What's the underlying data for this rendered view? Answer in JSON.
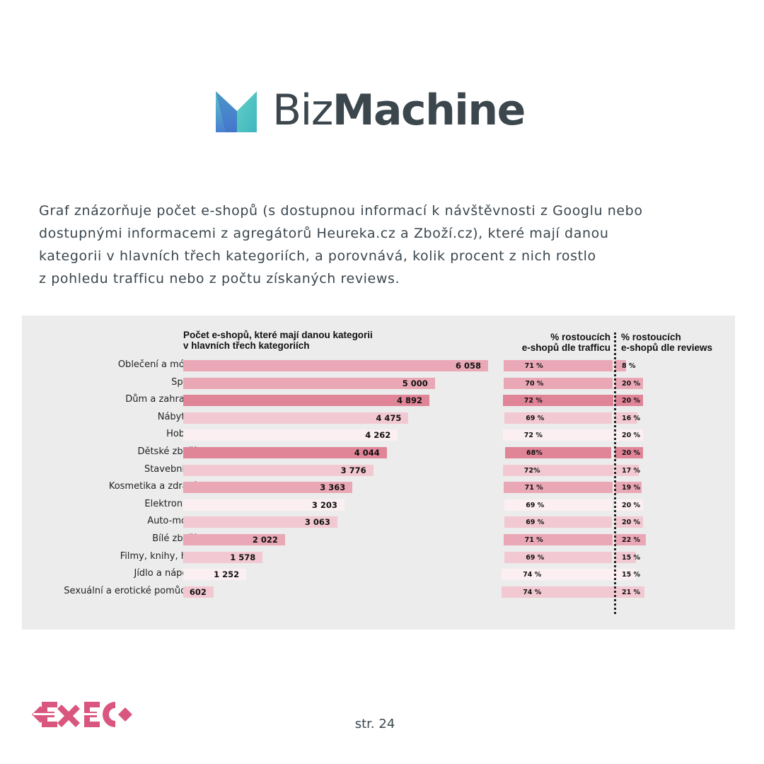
{
  "logo": {
    "text_light": "Biz",
    "text_bold": "Machine"
  },
  "intro_lines": [
    "Graf znázorňuje počet e-shopů (s dostupnou informací k návštěvnosti z Googlu nebo",
    "dostupnými informacemi z agregátorů Heureka.cz a Zboží.cz), které mají danou",
    "kategorii v hlavních třech kategoriích, a porovnává, kolik procent z nich rostlo",
    "z pohledu trafficu nebo z počtu získaných reviews."
  ],
  "chart_data": {
    "type": "bar",
    "orientation": "horizontal",
    "title_lines": [
      "Počet e-shopů, které mají danou kategorii",
      "v hlavních třech kategoriích"
    ],
    "traffic_header_lines": [
      "% rostoucích",
      "e-shopů dle trafficu"
    ],
    "reviews_header_lines": [
      "% rostoucích",
      "e-shopů dle reviews"
    ],
    "xlim": [
      0,
      6058
    ],
    "categories": [
      "Oblečení a móda",
      "Sport",
      "Dům a zahrada",
      "Nábytek",
      "Hobby",
      "Dětské zboží",
      "Stavebniny",
      "Kosmetika a zdraví",
      "Elektronika",
      "Auto-moto",
      "Bílé zboží",
      "Filmy, knihy, hry",
      "Jídlo a nápoje",
      "Sexuální a erotické pomůcky"
    ],
    "counts": [
      6058,
      5000,
      4892,
      4475,
      4262,
      4044,
      3776,
      3363,
      3203,
      3063,
      2022,
      1578,
      1252,
      602
    ],
    "count_labels": [
      "6 058",
      "5 000",
      "4 892",
      "4 475",
      "4 262",
      "4 044",
      "3 776",
      "3 363",
      "3 203",
      "3 063",
      "2 022",
      "1 578",
      "1 252",
      "602"
    ],
    "traffic_pct": [
      71,
      70,
      72,
      69,
      72,
      68,
      72,
      71,
      69,
      69,
      71,
      69,
      74,
      74
    ],
    "traffic_labels": [
      "71 %",
      "70 %",
      "72 %",
      "69 %",
      "72 %",
      "68%",
      "72%",
      "71 %",
      "69 %",
      "69 %",
      "71 %",
      "69 %",
      "74 %",
      "74 %"
    ],
    "reviews_pct": [
      8,
      20,
      20,
      16,
      20,
      20,
      17,
      19,
      20,
      20,
      22,
      15,
      15,
      21
    ],
    "reviews_labels": [
      "8 %",
      "20 %",
      "20 %",
      "16 %",
      "20 %",
      "20 %",
      "17 %",
      "19 %",
      "20 %",
      "20 %",
      "22 %",
      "15 %",
      "15 %",
      "21 %"
    ],
    "shade": [
      2,
      2,
      3,
      1,
      0,
      3,
      1,
      2,
      0,
      1,
      2,
      1,
      0,
      1
    ],
    "colors": [
      "#fbeff2",
      "#f2c9d2",
      "#eaa8b6",
      "#e08498"
    ]
  },
  "footer": {
    "page": "str. 24"
  }
}
